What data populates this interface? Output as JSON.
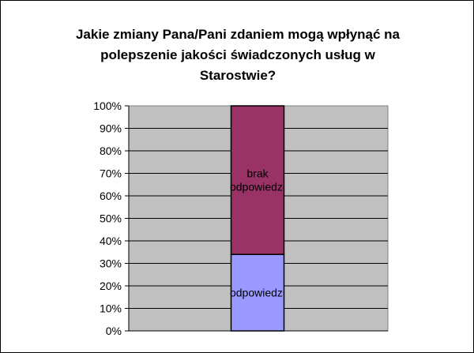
{
  "chart_data": {
    "type": "bar",
    "stacked": true,
    "percent": true,
    "title": "Jakie zmiany Pana/Pani zdaniem mogą wpłynąć na polepszenie jakości świadczonych usług w Starostwie?",
    "title_lines": [
      "Jakie zmiany Pana/Pani zdaniem mogą wpłynąć na",
      "polepszenie jakości świadczonych usług w",
      "Starostwie?"
    ],
    "categories": [
      ""
    ],
    "series": [
      {
        "name": "odpowiedzi",
        "values": [
          34
        ],
        "color": "#9999ff",
        "label_lines": [
          "odpowiedzi"
        ]
      },
      {
        "name": "brak odpowiedzi",
        "values": [
          66
        ],
        "color": "#993366",
        "label_lines": [
          "brak",
          "odpowiedzi"
        ]
      }
    ],
    "ylim": [
      0,
      100
    ],
    "yticks": [
      "0%",
      "10%",
      "20%",
      "30%",
      "40%",
      "50%",
      "60%",
      "70%",
      "80%",
      "90%",
      "100%"
    ],
    "grid": true,
    "plot_background": "#c0c0c0",
    "legend": "none"
  }
}
